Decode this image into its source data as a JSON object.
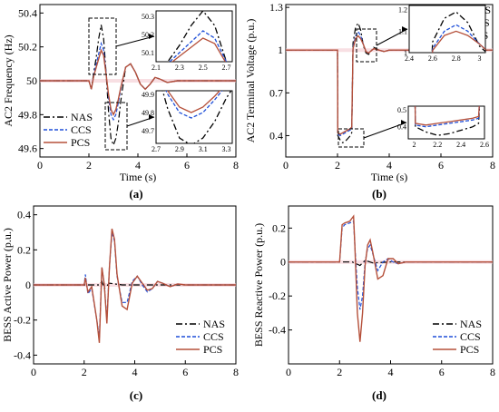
{
  "figure": {
    "panels": [
      {
        "id": "a",
        "caption": "(a)",
        "ylabel": "AC2 Frequency (Hz)",
        "xlabel": "Time (s)",
        "legend": [
          "NAS",
          "CCS",
          "PCS"
        ],
        "legend_position": "bottom-left"
      },
      {
        "id": "b",
        "caption": "(b)",
        "ylabel": "AC2 Terminal Voltage (p.u.)",
        "xlabel": "Time (s)",
        "legend": [
          "NAS",
          "CCS",
          "PCS"
        ],
        "legend_position": "top-right"
      },
      {
        "id": "c",
        "caption": "(c)",
        "ylabel": "BESS Active Power (p.u.)",
        "xlabel": "",
        "legend": [
          "NAS",
          "CCS",
          "PCS"
        ],
        "legend_position": "bottom-right"
      },
      {
        "id": "d",
        "caption": "(d)",
        "ylabel": "BESS Reactive Power (p.u.)",
        "xlabel": "",
        "legend": [
          "NAS",
          "CCS",
          "PCS"
        ],
        "legend_position": "bottom-right"
      }
    ]
  },
  "colors": {
    "NAS": "#000000",
    "CCS": "#1f4fd8",
    "PCS": "#b5503a",
    "band": "#f2c4cc"
  },
  "chart_data": [
    {
      "type": "line",
      "title": "",
      "xlabel": "Time (s)",
      "ylabel": "AC2 Frequency (Hz)",
      "xlim": [
        0,
        8
      ],
      "ylim": [
        49.55,
        50.45
      ],
      "xticks": [
        0,
        2,
        4,
        6,
        8
      ],
      "yticks": [
        49.6,
        49.8,
        50,
        50.2,
        50.4
      ],
      "ytick_labels": [
        "49.6",
        "49.8",
        "50",
        "50.2",
        "50.4"
      ],
      "legend": "bottom-left",
      "series": [
        {
          "name": "NAS",
          "x": [
            0,
            2,
            2.1,
            2.2,
            2.3,
            2.4,
            2.5,
            2.6,
            2.7,
            2.8,
            2.9,
            3.0,
            3.1,
            3.2,
            3.3,
            3.4,
            3.5,
            3.7,
            3.9,
            4.1,
            4.3,
            4.5,
            4.7,
            4.9,
            5.2,
            5.6,
            6,
            8
          ],
          "y": [
            50,
            50,
            49.95,
            50.05,
            50.14,
            50.25,
            50.33,
            50.25,
            50.05,
            49.82,
            49.66,
            49.62,
            49.66,
            49.75,
            49.88,
            49.98,
            50.08,
            50.1,
            50.05,
            49.98,
            49.95,
            49.98,
            50.02,
            50.01,
            49.99,
            50,
            50,
            50
          ]
        },
        {
          "name": "CCS",
          "x": [
            0,
            2,
            2.1,
            2.2,
            2.3,
            2.4,
            2.5,
            2.6,
            2.7,
            2.8,
            2.9,
            3.0,
            3.1,
            3.2,
            3.3,
            3.4,
            3.5,
            3.7,
            3.9,
            4.1,
            4.3,
            4.5,
            4.7,
            4.9,
            5.2,
            5.6,
            6,
            8
          ],
          "y": [
            50,
            50,
            49.95,
            50.04,
            50.1,
            50.16,
            50.22,
            50.18,
            50.05,
            49.9,
            49.8,
            49.77,
            49.8,
            49.87,
            49.95,
            50.02,
            50.08,
            50.1,
            50.05,
            49.98,
            49.95,
            49.98,
            50.02,
            50.01,
            49.99,
            50,
            50,
            50
          ]
        },
        {
          "name": "PCS",
          "x": [
            0,
            2,
            2.1,
            2.2,
            2.3,
            2.4,
            2.5,
            2.6,
            2.7,
            2.8,
            2.9,
            3.0,
            3.1,
            3.2,
            3.3,
            3.4,
            3.5,
            3.7,
            3.9,
            4.1,
            4.3,
            4.5,
            4.7,
            4.9,
            5.2,
            5.6,
            6,
            8
          ],
          "y": [
            50,
            50,
            49.95,
            50.03,
            50.08,
            50.13,
            50.18,
            50.15,
            50.04,
            49.92,
            49.83,
            49.8,
            49.83,
            49.89,
            49.96,
            50.02,
            50.08,
            50.1,
            50.05,
            49.98,
            49.95,
            49.98,
            50.02,
            50.01,
            49.99,
            50,
            50,
            50
          ]
        }
      ],
      "insets": [
        {
          "xlim": [
            2.1,
            2.75
          ],
          "ylim": [
            50.05,
            50.33
          ],
          "xticks": [
            2.1,
            2.3,
            2.5,
            2.7
          ],
          "yticks": [
            50.1,
            50.2,
            50.3
          ],
          "ytick_labels": [
            "50.1",
            "50.2",
            "50.3"
          ]
        },
        {
          "xlim": [
            2.7,
            3.35
          ],
          "ylim": [
            49.63,
            49.92
          ],
          "xticks": [
            2.7,
            2.9,
            3.1,
            3.3
          ],
          "yticks": [
            49.7,
            49.8,
            49.9
          ],
          "ytick_labels": [
            "49.7",
            "49.8",
            "49.9"
          ]
        }
      ]
    },
    {
      "type": "line",
      "title": "",
      "xlabel": "Time (s)",
      "ylabel": "AC2 Terminal Voltage (p.u.)",
      "xlim": [
        0,
        8
      ],
      "ylim": [
        0.25,
        1.32
      ],
      "xticks": [
        0,
        2,
        4,
        6,
        8
      ],
      "yticks": [
        0.4,
        0.7,
        1,
        1.3
      ],
      "ytick_labels": [
        "0.4",
        "0.7",
        "1",
        "1.3"
      ],
      "legend": "top-right",
      "series": [
        {
          "name": "NAS",
          "x": [
            0,
            2,
            2.01,
            2.1,
            2.2,
            2.3,
            2.4,
            2.5,
            2.55,
            2.6,
            2.7,
            2.8,
            2.9,
            3.0,
            3.1,
            3.2,
            3.4,
            3.6,
            3.8,
            4.0,
            4.3,
            4.6,
            5,
            6,
            8
          ],
          "y": [
            1,
            1,
            0.4,
            0.37,
            0.35,
            0.36,
            0.38,
            0.4,
            0.42,
            1.05,
            1.16,
            1.19,
            1.14,
            1.03,
            0.98,
            0.97,
            1.02,
            1.0,
            0.99,
            1.0,
            1.0,
            1.0,
            1,
            1,
            1
          ]
        },
        {
          "name": "CCS",
          "x": [
            0,
            2,
            2.01,
            2.1,
            2.2,
            2.3,
            2.4,
            2.5,
            2.55,
            2.6,
            2.7,
            2.8,
            2.9,
            3.0,
            3.1,
            3.2,
            3.4,
            3.6,
            3.8,
            4.0,
            4.3,
            4.6,
            5,
            6,
            8
          ],
          "y": [
            1,
            1,
            0.41,
            0.4,
            0.41,
            0.42,
            0.43,
            0.44,
            0.45,
            1.02,
            1.1,
            1.13,
            1.1,
            1.04,
            0.99,
            0.98,
            1.01,
            1.0,
            0.99,
            1.0,
            1.0,
            1.0,
            1,
            1,
            1
          ]
        },
        {
          "name": "PCS",
          "x": [
            0,
            2,
            2.01,
            2.1,
            2.2,
            2.3,
            2.4,
            2.5,
            2.55,
            2.6,
            2.7,
            2.8,
            2.9,
            3.0,
            3.1,
            3.2,
            3.4,
            3.6,
            3.8,
            4.0,
            4.3,
            4.6,
            5,
            6,
            8
          ],
          "y": [
            1,
            1,
            0.42,
            0.41,
            0.42,
            0.43,
            0.44,
            0.45,
            0.46,
            1.01,
            1.08,
            1.1,
            1.08,
            1.04,
            0.99,
            0.98,
            1.01,
            1.0,
            0.99,
            1.0,
            1.0,
            1.0,
            1,
            1,
            1
          ]
        }
      ],
      "insets": [
        {
          "xlim": [
            2.4,
            3.05
          ],
          "ylim": [
            1.0,
            1.22
          ],
          "xticks": [
            2.4,
            2.6,
            2.8,
            3
          ],
          "xtick_labels": [
            "2.4",
            "2.6",
            "2.8",
            "3"
          ],
          "yticks": [
            1,
            1.1,
            1.2
          ],
          "ytick_labels": [
            "1",
            "1.1",
            "1.2"
          ]
        },
        {
          "xlim": [
            1.95,
            2.6
          ],
          "ylim": [
            0.33,
            0.52
          ],
          "xticks": [
            2,
            2.2,
            2.4,
            2.6
          ],
          "xtick_labels": [
            "2",
            "2.2",
            "2.4",
            "2.6"
          ],
          "yticks": [
            0.4,
            0.5
          ],
          "ytick_labels": [
            "0.4",
            "0.5"
          ]
        }
      ]
    },
    {
      "type": "line",
      "title": "",
      "xlabel": "",
      "ylabel": "BESS Active Power (p.u.)",
      "xlim": [
        0,
        8
      ],
      "ylim": [
        -0.45,
        0.45
      ],
      "xticks": [
        0,
        2,
        4,
        6,
        8
      ],
      "yticks": [
        -0.4,
        -0.2,
        0,
        0.2,
        0.4
      ],
      "ytick_labels": [
        "-0.4",
        "-0.2",
        "0",
        "0.2",
        "0.4"
      ],
      "legend": "bottom-right",
      "series": [
        {
          "name": "NAS",
          "x": [
            0,
            2,
            2.6,
            2.7,
            2.8,
            3.0,
            3.5,
            4,
            8
          ],
          "y": [
            0,
            0,
            0,
            0.02,
            -0.02,
            0.01,
            0,
            0,
            0
          ]
        },
        {
          "name": "CCS",
          "x": [
            0,
            2,
            2.05,
            2.15,
            2.3,
            2.5,
            2.6,
            2.7,
            2.8,
            2.9,
            3.0,
            3.1,
            3.2,
            3.3,
            3.5,
            3.7,
            3.9,
            4.1,
            4.3,
            4.5,
            4.7,
            4.9,
            5.1,
            5.4,
            5.7,
            6,
            8
          ],
          "y": [
            0,
            0,
            0.06,
            -0.05,
            -0.02,
            -0.2,
            -0.3,
            0.1,
            0.0,
            -0.2,
            0.1,
            0.3,
            0.25,
            0.05,
            -0.1,
            -0.1,
            0.02,
            0.05,
            0.0,
            -0.04,
            -0.02,
            0.02,
            0.01,
            -0.01,
            0.005,
            0,
            0
          ]
        },
        {
          "name": "PCS",
          "x": [
            0,
            2,
            2.05,
            2.15,
            2.3,
            2.5,
            2.6,
            2.7,
            2.8,
            2.9,
            3.0,
            3.1,
            3.2,
            3.3,
            3.5,
            3.7,
            3.9,
            4.1,
            4.3,
            4.5,
            4.7,
            4.9,
            5.1,
            5.4,
            5.7,
            6,
            8
          ],
          "y": [
            0,
            0,
            0.04,
            -0.04,
            -0.01,
            -0.2,
            -0.33,
            0.1,
            0.0,
            -0.22,
            0.1,
            0.32,
            0.26,
            0.06,
            -0.12,
            -0.14,
            0.01,
            0.05,
            0.01,
            -0.03,
            -0.02,
            0.02,
            0.01,
            -0.01,
            0.005,
            0,
            0
          ]
        }
      ]
    },
    {
      "type": "line",
      "title": "",
      "xlabel": "",
      "ylabel": "BESS Reactive Power (p.u.)",
      "xlim": [
        0,
        8
      ],
      "ylim": [
        -0.6,
        0.33
      ],
      "xticks": [
        0,
        2,
        4,
        6,
        8
      ],
      "yticks": [
        -0.4,
        -0.2,
        0,
        0.2
      ],
      "ytick_labels": [
        "-0.4",
        "-0.2",
        "0",
        "0.2"
      ],
      "legend": "bottom-right",
      "series": [
        {
          "name": "NAS",
          "x": [
            0,
            2,
            2.5,
            2.8,
            3.0,
            3.3,
            4,
            8
          ],
          "y": [
            0,
            0,
            0,
            -0.02,
            0.01,
            -0.005,
            0,
            0
          ]
        },
        {
          "name": "CCS",
          "x": [
            0,
            2,
            2.1,
            2.2,
            2.4,
            2.55,
            2.6,
            2.7,
            2.8,
            2.9,
            3.0,
            3.1,
            3.2,
            3.3,
            3.5,
            3.7,
            3.9,
            4.1,
            4.3,
            4.6,
            5,
            6,
            8
          ],
          "y": [
            0,
            0,
            0.2,
            0.22,
            0.23,
            0.24,
            0.1,
            -0.15,
            -0.28,
            -0.2,
            0.0,
            0.08,
            0.1,
            0.05,
            -0.05,
            0.0,
            0.02,
            0.0,
            -0.01,
            0.0,
            0,
            0,
            0
          ]
        },
        {
          "name": "PCS",
          "x": [
            0,
            2,
            2.1,
            2.2,
            2.4,
            2.55,
            2.6,
            2.7,
            2.8,
            2.9,
            3.0,
            3.1,
            3.2,
            3.3,
            3.5,
            3.7,
            3.9,
            4.1,
            4.3,
            4.6,
            5,
            6,
            8
          ],
          "y": [
            0,
            0,
            0.22,
            0.23,
            0.24,
            0.27,
            0.1,
            -0.3,
            -0.47,
            -0.3,
            -0.02,
            0.1,
            0.13,
            0.06,
            -0.1,
            -0.08,
            0.02,
            0.02,
            -0.01,
            0.0,
            0,
            0,
            0
          ]
        }
      ]
    }
  ]
}
